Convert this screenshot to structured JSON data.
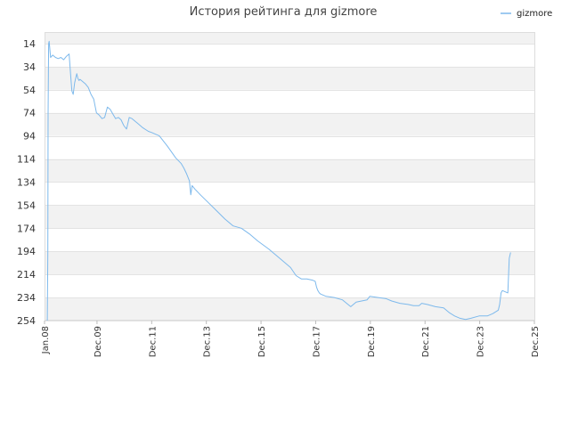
{
  "chart_data": {
    "type": "line",
    "title": "История рейтинга для gizmore",
    "xlabel": "",
    "ylabel": "",
    "y_inverted": true,
    "ylim": [
      4,
      254
    ],
    "grid": "horizontal bands",
    "legend_position": "top-right",
    "series_color": "#7db9ec",
    "y_ticks": [
      14,
      34,
      54,
      74,
      94,
      114,
      134,
      154,
      174,
      194,
      214,
      234,
      254
    ],
    "x_ticks": [
      "Jan.08",
      "Dec.09",
      "Dec.11",
      "Dec.13",
      "Dec.15",
      "Dec.17",
      "Dec.19",
      "Dec.21",
      "Dec.23",
      "Dec.25"
    ],
    "x_tick_years": [
      2008.0,
      2009.92,
      2011.92,
      2013.92,
      2015.92,
      2017.92,
      2019.92,
      2021.92,
      2023.92,
      2025.92
    ],
    "series": [
      {
        "name": "gizmore",
        "x": [
          2008.1,
          2008.12,
          2008.13,
          2008.15,
          2008.17,
          2008.22,
          2008.3,
          2008.4,
          2008.5,
          2008.6,
          2008.7,
          2008.8,
          2008.9,
          2008.95,
          2009.0,
          2009.05,
          2009.1,
          2009.15,
          2009.18,
          2009.22,
          2009.26,
          2009.3,
          2009.4,
          2009.5,
          2009.6,
          2009.7,
          2009.8,
          2009.9,
          2010.0,
          2010.1,
          2010.2,
          2010.3,
          2010.4,
          2010.5,
          2010.6,
          2010.7,
          2010.8,
          2010.9,
          2011.0,
          2011.1,
          2011.2,
          2011.4,
          2011.6,
          2011.8,
          2011.92,
          2012.2,
          2012.5,
          2012.8,
          2013.0,
          2013.1,
          2013.2,
          2013.3,
          2013.35,
          2013.4,
          2013.5,
          2013.7,
          2014.0,
          2014.3,
          2014.6,
          2014.9,
          2015.2,
          2015.5,
          2015.8,
          2016.2,
          2016.6,
          2017.0,
          2017.2,
          2017.4,
          2017.6,
          2017.8,
          2017.9,
          2017.95,
          2018.0,
          2018.05,
          2018.1,
          2018.3,
          2018.6,
          2018.9,
          2019.2,
          2019.4,
          2019.6,
          2019.8,
          2019.9,
          2020.2,
          2020.5,
          2020.7,
          2021.0,
          2021.3,
          2021.5,
          2021.7,
          2021.8,
          2022.0,
          2022.3,
          2022.6,
          2022.8,
          2023.0,
          2023.2,
          2023.4,
          2023.6,
          2023.9,
          2024.2,
          2024.4,
          2024.6,
          2024.65,
          2024.7,
          2024.75,
          2024.95,
          2025.0,
          2025.05
        ],
        "values": [
          254,
          195,
          75,
          14,
          12,
          26,
          24,
          26,
          27,
          26,
          28,
          25,
          23,
          40,
          55,
          58,
          48,
          43,
          40,
          44,
          46,
          45,
          47,
          49,
          52,
          58,
          62,
          74,
          76,
          79,
          78,
          69,
          71,
          75,
          79,
          78,
          80,
          85,
          88,
          78,
          79,
          83,
          87,
          90,
          91,
          94,
          103,
          113,
          118,
          122,
          127,
          133,
          145,
          137,
          140,
          145,
          152,
          159,
          166,
          172,
          174,
          179,
          185,
          192,
          200,
          208,
          215,
          218,
          218,
          219,
          220,
          225,
          228,
          230,
          231,
          233,
          234,
          236,
          242,
          238,
          237,
          236,
          233,
          234,
          235,
          237,
          239,
          240,
          241,
          241,
          239,
          240,
          242,
          243,
          247,
          250,
          252,
          253,
          252,
          250,
          250,
          248,
          245,
          240,
          230,
          228,
          230,
          200,
          195
        ]
      }
    ]
  }
}
